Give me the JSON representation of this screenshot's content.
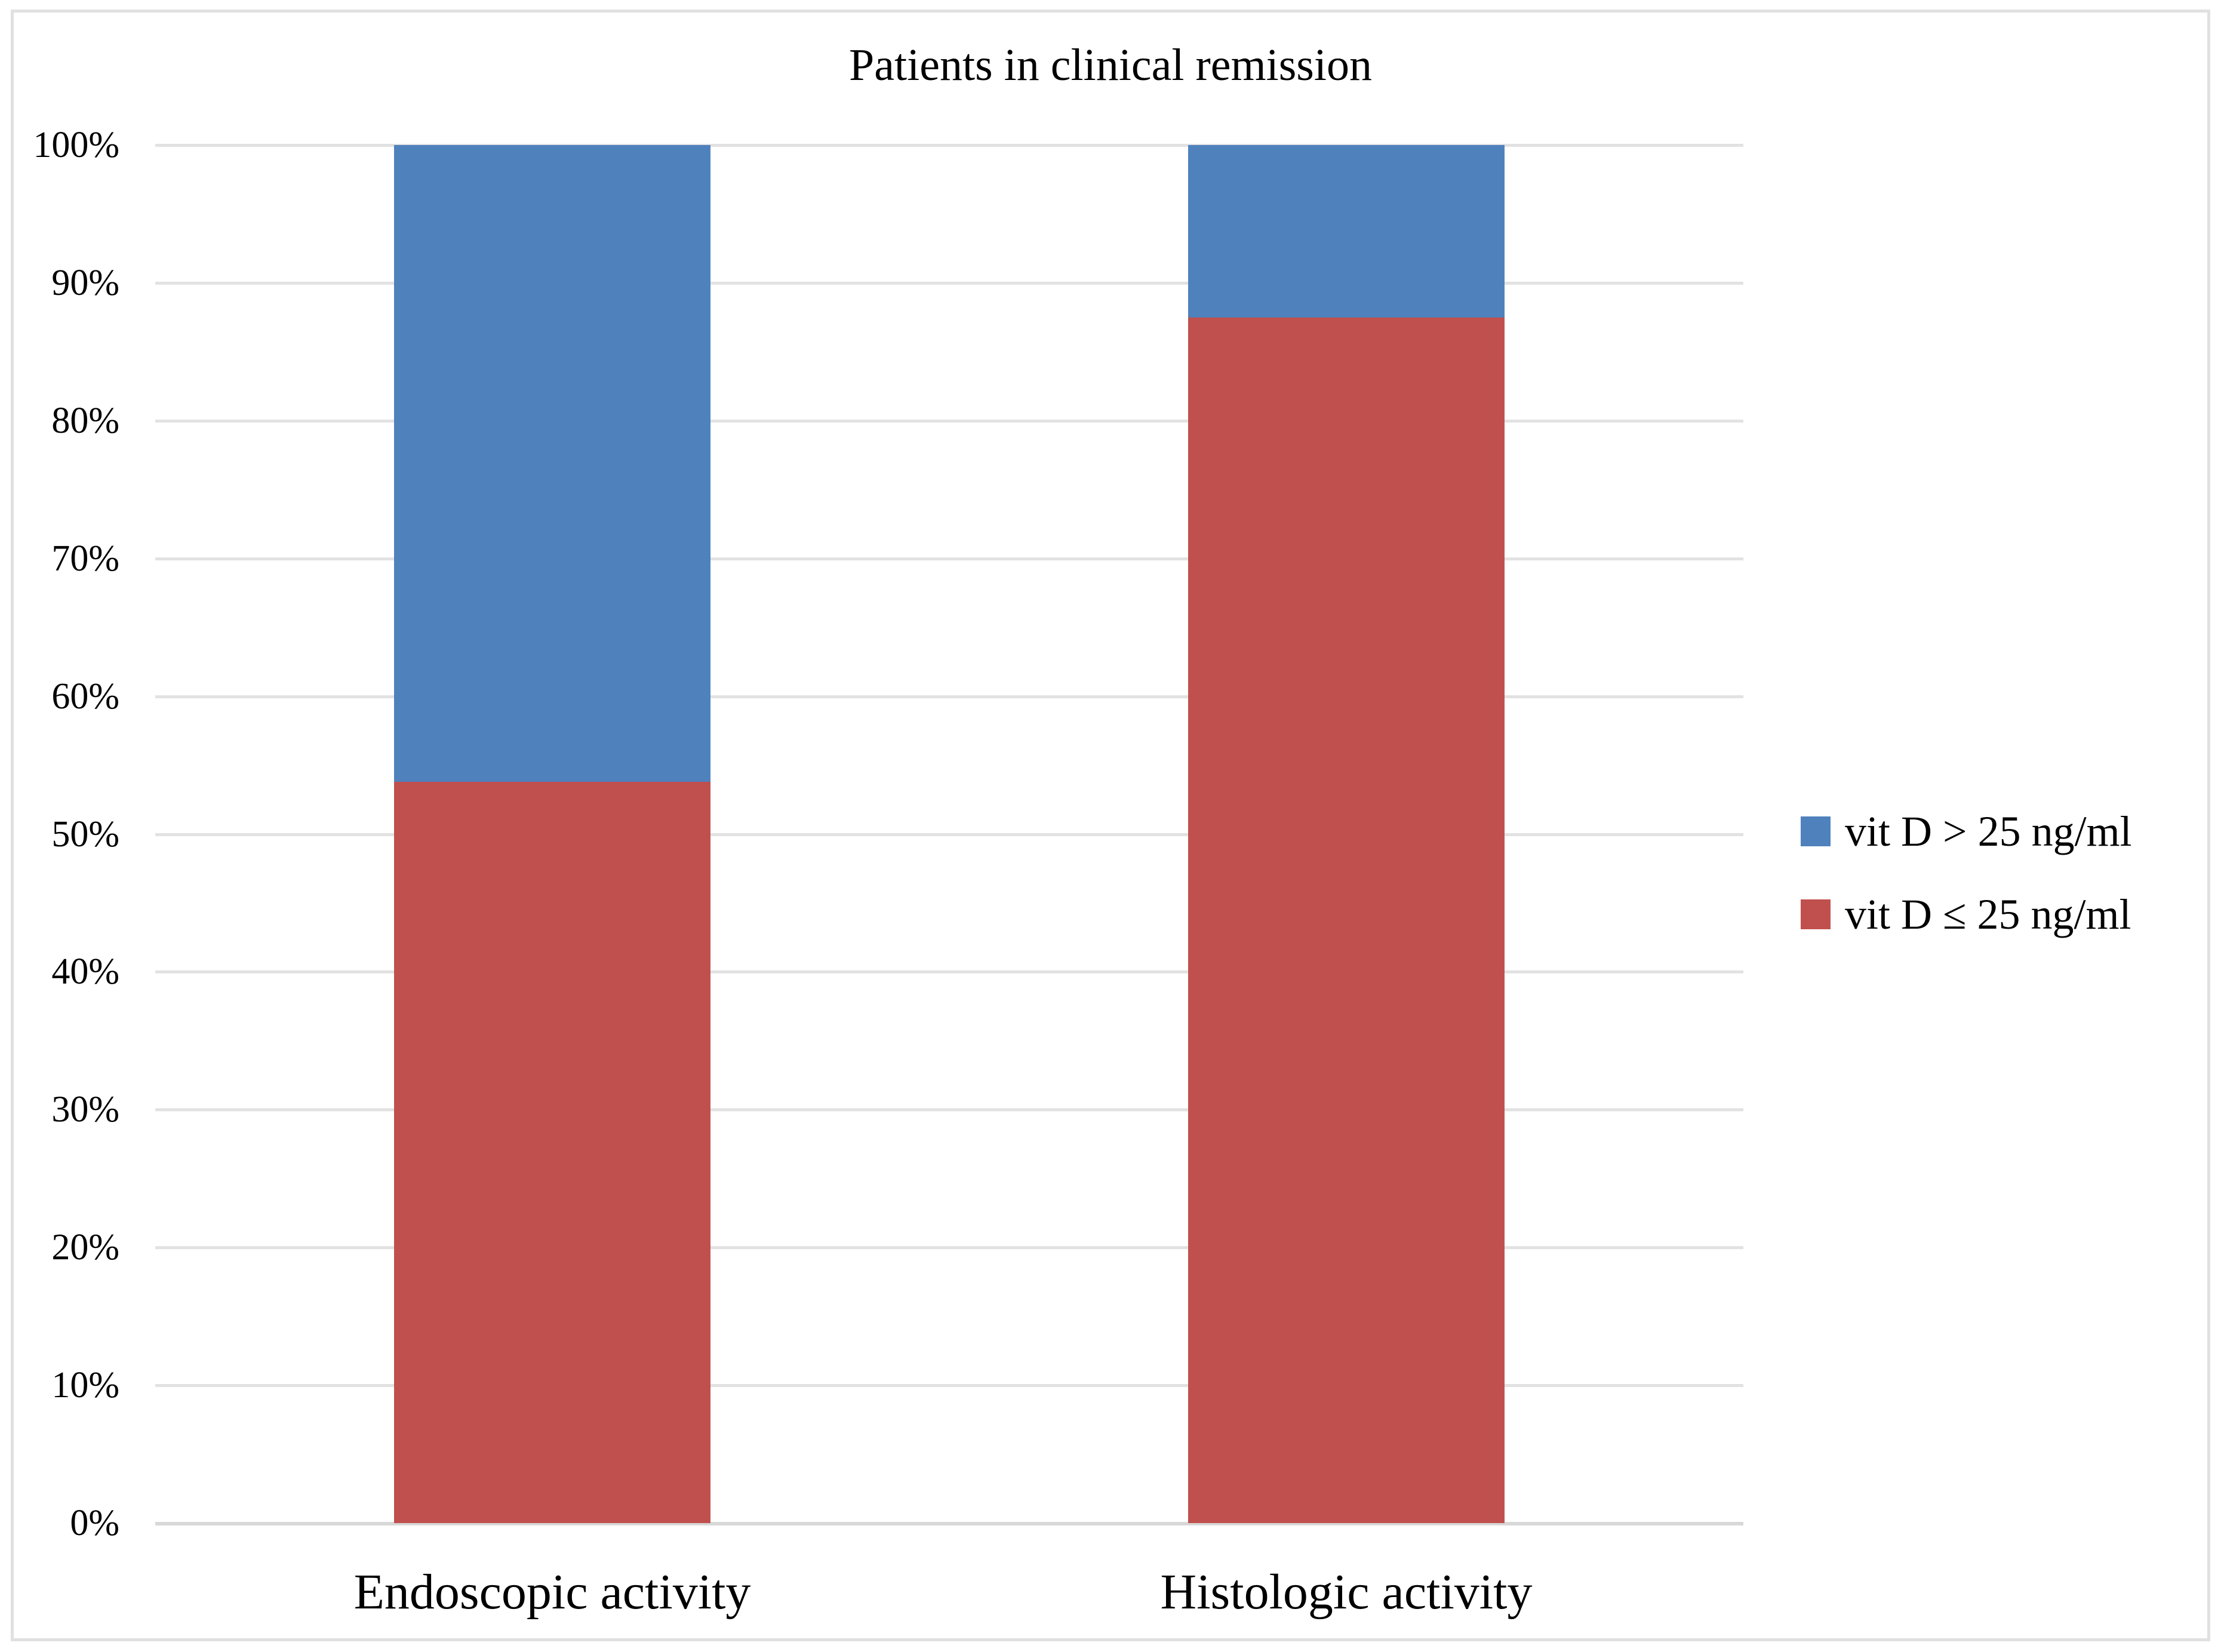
{
  "chart_data": {
    "type": "bar",
    "subtype": "stacked-100-percent",
    "title": "Patients in clinical remission",
    "categories": [
      "Endoscopic activity",
      "Histologic activity"
    ],
    "series": [
      {
        "name": "vit D ≤ 25 ng/ml",
        "color": "#C0504D",
        "values": [
          53.8,
          87.5
        ]
      },
      {
        "name": "vit D > 25 ng/ml",
        "color": "#4F81BD",
        "values": [
          46.2,
          12.5
        ]
      }
    ],
    "stack_order_bottom_to_top": [
      "vit D ≤ 25 ng/ml",
      "vit D > 25 ng/ml"
    ],
    "xlabel": "",
    "ylabel": "",
    "ylim": [
      0,
      100
    ],
    "ytick_labels": [
      "0%",
      "10%",
      "20%",
      "30%",
      "40%",
      "50%",
      "60%",
      "70%",
      "80%",
      "90%",
      "100%"
    ],
    "grid": true,
    "gridline_color": "#E2E2E2",
    "axis_line_color": "#D8D8D8",
    "frame_border_color": "#E0E0E0",
    "background_color": "#FFFFFF",
    "legend_position": "right",
    "legend": [
      {
        "label": "vit D > 25 ng/ml",
        "color": "#4F81BD"
      },
      {
        "label": "vit D ≤ 25 ng/ml",
        "color": "#C0504D"
      }
    ]
  }
}
